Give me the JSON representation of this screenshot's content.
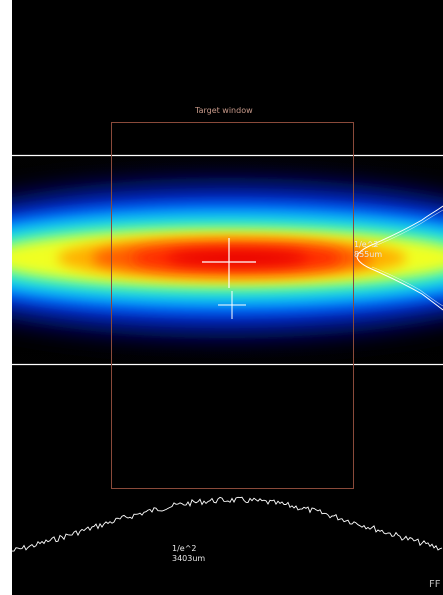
{
  "target_window": {
    "label": "Target window"
  },
  "vertical_profile": {
    "line1": "1/e^2",
    "line2": "855um"
  },
  "horizontal_profile": {
    "line1": "1/e^2",
    "line2": "3403um"
  },
  "corner_text": "FF",
  "colors": {
    "target_window_border": "#8a4a3a",
    "profile_line": "#ffffff",
    "crosshair": "#ffffff",
    "background": "#000000"
  },
  "icons": {
    "beam_center_marker": "crosshair-icon",
    "centroid_marker": "plus-icon"
  }
}
